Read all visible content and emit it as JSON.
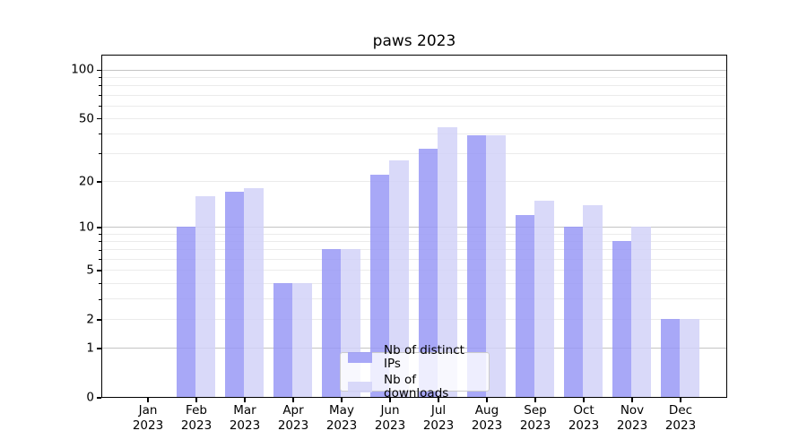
{
  "title": "paws 2023",
  "chart_data": {
    "type": "bar",
    "title": "paws 2023",
    "yscale": "log1p",
    "grid": true,
    "legend_position": "lower center",
    "categories": [
      "Jan",
      "Feb",
      "Mar",
      "Apr",
      "May",
      "Jun",
      "Jul",
      "Aug",
      "Sep",
      "Oct",
      "Nov",
      "Dec"
    ],
    "x_tick_year": "2023",
    "series": [
      {
        "name": "Nb of distinct IPs",
        "color": "#9999f6",
        "values": [
          0,
          10,
          17,
          4,
          7,
          22,
          32,
          39,
          12,
          10,
          8,
          2
        ]
      },
      {
        "name": "Nb of downloads",
        "color": "#d2d2f8",
        "values": [
          0,
          16,
          18,
          4,
          7,
          27,
          44,
          39,
          15,
          14,
          10,
          2
        ]
      }
    ],
    "y_ticks": [
      0,
      1,
      2,
      5,
      10,
      20,
      50,
      100
    ],
    "y_major_gridlines": [
      1,
      10,
      100
    ],
    "y_minor_gridlines": [
      2,
      3,
      4,
      5,
      6,
      7,
      8,
      9,
      20,
      30,
      40,
      50,
      60,
      70,
      80,
      90
    ],
    "ylim": [
      0,
      125
    ],
    "xlabel": "",
    "ylabel": ""
  }
}
